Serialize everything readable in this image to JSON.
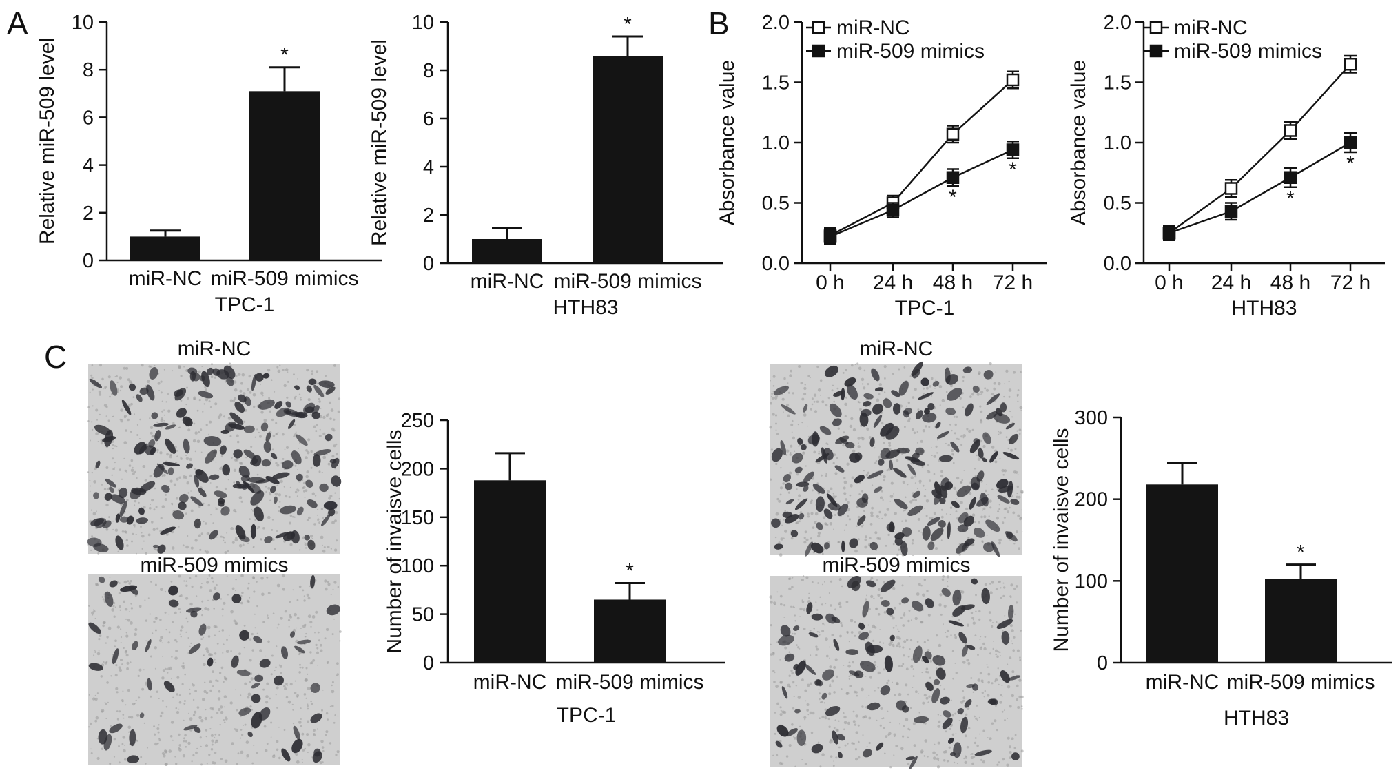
{
  "panels": [
    {
      "id": "A",
      "label": "A"
    },
    {
      "id": "B",
      "label": "B"
    },
    {
      "id": "C",
      "label": "C"
    }
  ],
  "colors": {
    "bar": "#141414",
    "line": "#141414",
    "micrograph_bg": "#cfcfcf",
    "cell": "#2d2d33"
  },
  "micrographs": [
    {
      "title": "miR-NC",
      "density": "high"
    },
    {
      "title": "miR-509 mimics",
      "density": "low"
    },
    {
      "title": "miR-NC",
      "density": "high"
    },
    {
      "title": "miR-509 mimics",
      "density": "medium"
    }
  ],
  "chart_data": [
    {
      "type": "bar",
      "panel": "A",
      "categories": [
        "miR-NC",
        "miR-509 mimics"
      ],
      "values": [
        1.0,
        7.1
      ],
      "errors": [
        0.25,
        1.0
      ],
      "significance": [
        "",
        "*"
      ],
      "ylabel": "Relative miR-509 level",
      "xlabel": "TPC-1",
      "ylim": [
        0,
        10
      ],
      "yticks": [
        0,
        2,
        4,
        6,
        8,
        10
      ]
    },
    {
      "type": "bar",
      "panel": "A",
      "categories": [
        "miR-NC",
        "miR-509 mimics"
      ],
      "values": [
        1.0,
        8.6
      ],
      "errors": [
        0.45,
        0.8
      ],
      "significance": [
        "",
        "*"
      ],
      "ylabel": "Relative miR-509 level",
      "xlabel": "HTH83",
      "ylim": [
        0,
        10
      ],
      "yticks": [
        0,
        2,
        4,
        6,
        8,
        10
      ]
    },
    {
      "type": "line",
      "panel": "B",
      "x": [
        "0 h",
        "24 h",
        "48 h",
        "72 h"
      ],
      "series": [
        {
          "name": "miR-NC",
          "marker": "open-square",
          "values": [
            0.23,
            0.5,
            1.07,
            1.52
          ],
          "errors": [
            0.06,
            0.06,
            0.07,
            0.07
          ],
          "significance": [
            "",
            "",
            "",
            ""
          ]
        },
        {
          "name": "miR-509 mimics",
          "marker": "filled-square",
          "values": [
            0.22,
            0.44,
            0.71,
            0.94
          ],
          "errors": [
            0.06,
            0.06,
            0.07,
            0.07
          ],
          "significance": [
            "",
            "",
            "*",
            "*"
          ]
        }
      ],
      "ylabel": "Absorbance value",
      "xlabel": "TPC-1",
      "ylim": [
        0,
        2.0
      ],
      "yticks": [
        "0.0",
        "0.5",
        "1.0",
        "1.5",
        "2.0"
      ],
      "legend": "top-left"
    },
    {
      "type": "line",
      "panel": "B",
      "x": [
        "0 h",
        "24 h",
        "48 h",
        "72 h"
      ],
      "series": [
        {
          "name": "miR-NC",
          "marker": "open-square",
          "values": [
            0.25,
            0.62,
            1.1,
            1.65
          ],
          "errors": [
            0.06,
            0.07,
            0.07,
            0.07
          ],
          "significance": [
            "",
            "",
            "",
            ""
          ]
        },
        {
          "name": "miR-509 mimics",
          "marker": "filled-square",
          "values": [
            0.25,
            0.43,
            0.71,
            1.0
          ],
          "errors": [
            0.06,
            0.07,
            0.08,
            0.08
          ],
          "significance": [
            "",
            "",
            "*",
            "*"
          ]
        }
      ],
      "ylabel": "Absorbance value",
      "xlabel": "HTH83",
      "ylim": [
        0,
        2.0
      ],
      "yticks": [
        "0.0",
        "0.5",
        "1.0",
        "1.5",
        "2.0"
      ],
      "legend": "top-left"
    },
    {
      "type": "bar",
      "panel": "C",
      "categories": [
        "miR-NC",
        "miR-509 mimics"
      ],
      "values": [
        188,
        65
      ],
      "errors": [
        28,
        17
      ],
      "significance": [
        "",
        "*"
      ],
      "ylabel": "Number of invaisve cells",
      "xlabel": "TPC-1",
      "ylim": [
        0,
        250
      ],
      "yticks": [
        0,
        50,
        100,
        150,
        200,
        250
      ]
    },
    {
      "type": "bar",
      "panel": "C",
      "categories": [
        "miR-NC",
        "miR-509 mimics"
      ],
      "values": [
        218,
        102
      ],
      "errors": [
        26,
        18
      ],
      "significance": [
        "",
        "*"
      ],
      "ylabel": "Number of invaisve cells",
      "xlabel": "HTH83",
      "ylim": [
        0,
        300
      ],
      "yticks": [
        0,
        100,
        200,
        300
      ]
    }
  ]
}
